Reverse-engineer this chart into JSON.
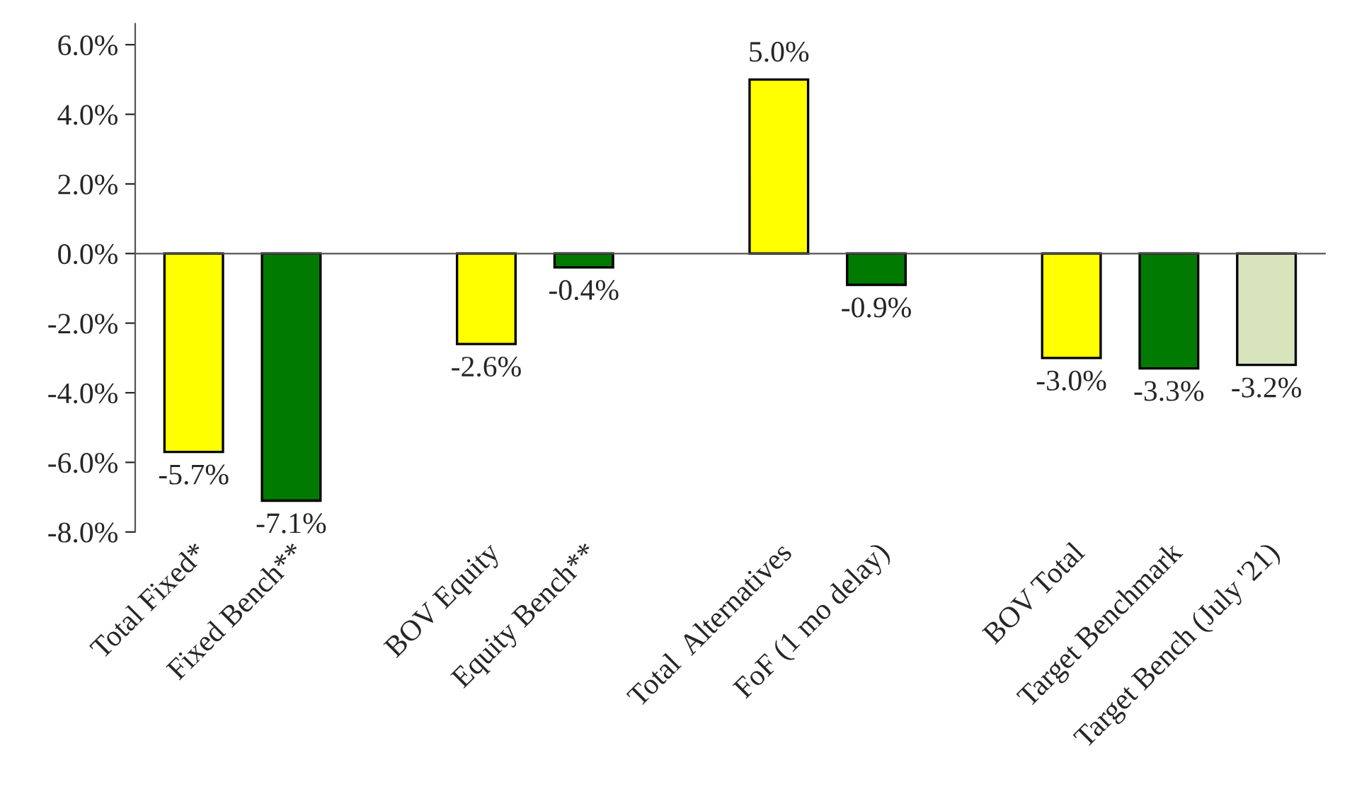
{
  "chart_data": {
    "type": "bar",
    "categories": [
      "Total Fixed*",
      "Fixed Bench**",
      null,
      "BOV Equity",
      "Equity Bench**",
      null,
      "Total  Alternatives",
      "FoF (1 mo delay)",
      null,
      "BOV Total",
      "Target Benchmark",
      "Target Bench (July '21)"
    ],
    "values": [
      -5.7,
      -7.1,
      null,
      -2.6,
      -0.4,
      null,
      5.0,
      -0.9,
      null,
      -3.0,
      -3.3,
      -3.2
    ],
    "colors": [
      "#ffff00",
      "#007a00",
      null,
      "#ffff00",
      "#007a00",
      null,
      "#ffff00",
      "#007a00",
      null,
      "#ffff00",
      "#007a00",
      "#d8e4bc"
    ],
    "value_labels": [
      "-5.7%",
      "-7.1%",
      null,
      "-2.6%",
      "-0.4%",
      null,
      "5.0%",
      "-0.9%",
      null,
      "-3.0%",
      "-3.3%",
      "-3.2%"
    ],
    "ylim": [
      -8,
      6.6
    ],
    "yticks": [
      {
        "value": -8,
        "label": "-8.0%"
      },
      {
        "value": -6,
        "label": "-6.0%"
      },
      {
        "value": -4,
        "label": "-4.0%"
      },
      {
        "value": -2,
        "label": "-2.0%"
      },
      {
        "value": 0,
        "label": "0.0%"
      },
      {
        "value": 2,
        "label": "2.0%"
      },
      {
        "value": 4,
        "label": "4.0%"
      },
      {
        "value": 6,
        "label": "6.0%"
      }
    ],
    "legend": false
  }
}
